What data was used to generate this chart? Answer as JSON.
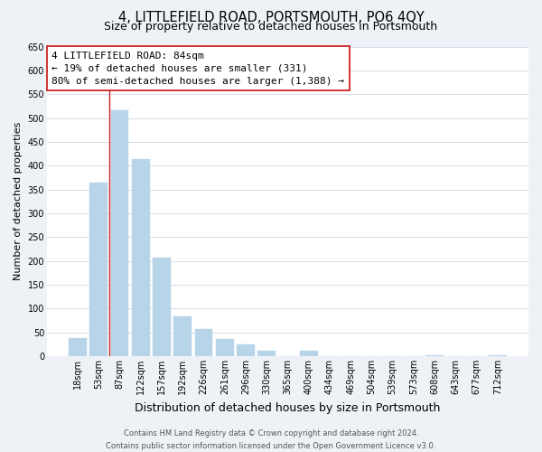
{
  "title": "4, LITTLEFIELD ROAD, PORTSMOUTH, PO6 4QY",
  "subtitle": "Size of property relative to detached houses in Portsmouth",
  "xlabel": "Distribution of detached houses by size in Portsmouth",
  "ylabel": "Number of detached properties",
  "bar_labels": [
    "18sqm",
    "53sqm",
    "87sqm",
    "122sqm",
    "157sqm",
    "192sqm",
    "226sqm",
    "261sqm",
    "296sqm",
    "330sqm",
    "365sqm",
    "400sqm",
    "434sqm",
    "469sqm",
    "504sqm",
    "539sqm",
    "573sqm",
    "608sqm",
    "643sqm",
    "677sqm",
    "712sqm"
  ],
  "bar_values": [
    38,
    365,
    517,
    413,
    207,
    84,
    57,
    37,
    25,
    11,
    0,
    11,
    0,
    0,
    0,
    0,
    0,
    1,
    0,
    0,
    1
  ],
  "bar_color": "#b8d4e8",
  "vline_x_index": 2,
  "vline_color": "#cc2222",
  "annotation_line1": "4 LITTLEFIELD ROAD: 84sqm",
  "annotation_line2": "← 19% of detached houses are smaller (331)",
  "annotation_line3": "80% of semi-detached houses are larger (1,388) →",
  "annotation_box_facecolor": "#ffffff",
  "annotation_box_edgecolor": "#cc2222",
  "ylim": [
    0,
    650
  ],
  "yticks": [
    0,
    50,
    100,
    150,
    200,
    250,
    300,
    350,
    400,
    450,
    500,
    550,
    600,
    650
  ],
  "footer_line1": "Contains HM Land Registry data © Crown copyright and database right 2024.",
  "footer_line2": "Contains public sector information licensed under the Open Government Licence v3.0.",
  "bg_color": "#eef2f7",
  "plot_bg_color": "#ffffff",
  "grid_color": "#d0d8e4",
  "title_fontsize": 10.5,
  "subtitle_fontsize": 9,
  "ylabel_fontsize": 8,
  "xlabel_fontsize": 9,
  "tick_fontsize": 7,
  "annotation_fontsize": 8,
  "footer_fontsize": 6
}
